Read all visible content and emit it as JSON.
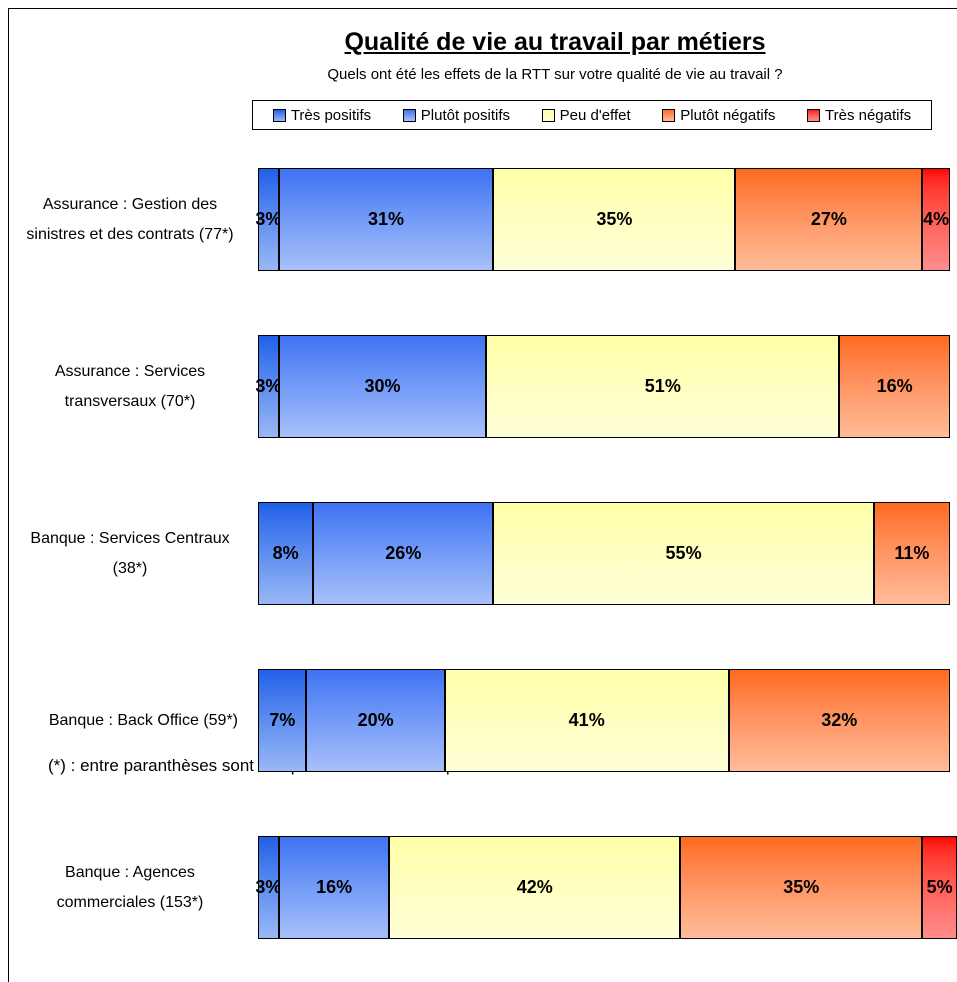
{
  "chart_data": {
    "type": "stacked-bar-horizontal",
    "title": "Qualité de vie au travail par métiers",
    "subtitle": "Quels ont été les effets de la RTT sur votre qualité de vie au travail ?",
    "footnote": "(*) : entre paranthèses sont indiqués le nombre de répondants concernés",
    "categories": [
      "Assurance : Gestion des sinistres et des contrats (77*)",
      "Assurance : Services transversaux (70*)",
      "Banque : Services Centraux (38*)",
      "Banque : Back Office (59*)",
      "Banque : Agences commerciales (153*)"
    ],
    "xlim": [
      0,
      100
    ],
    "legend": "top",
    "series": [
      {
        "name": "Très positifs",
        "color": "#1f5fe8",
        "values": [
          3,
          3,
          8,
          7,
          3
        ],
        "value_labels": [
          "3%",
          "3%",
          "8%",
          "7%",
          "3%"
        ]
      },
      {
        "name": "Plutôt positifs",
        "color": "#3f72f2",
        "values": [
          31,
          30,
          26,
          20,
          16
        ],
        "value_labels": [
          "31%",
          "30%",
          "26%",
          "20%",
          "16%"
        ]
      },
      {
        "name": "Peu d'effet",
        "color": "#ffffa8",
        "values": [
          35,
          51,
          55,
          41,
          42
        ],
        "value_labels": [
          "35%",
          "51%",
          "55%",
          "41%",
          "42%"
        ]
      },
      {
        "name": "Plutôt négatifs",
        "color": "#ff6a1a",
        "values": [
          27,
          16,
          11,
          32,
          35
        ],
        "value_labels": [
          "27%",
          "16%",
          "11%",
          "32%",
          "35%"
        ]
      },
      {
        "name": "Très négatifs",
        "color": "#ff0000",
        "values": [
          4,
          null,
          null,
          null,
          5
        ],
        "value_labels": [
          "4%",
          null,
          null,
          null,
          "5%"
        ]
      }
    ]
  }
}
